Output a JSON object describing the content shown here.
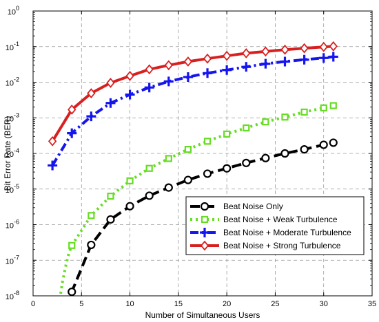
{
  "chart_data": {
    "type": "line",
    "xlabel": "Number of Simultaneous Users",
    "ylabel": "Bit Error Rate (BER)",
    "xlim": [
      0,
      35
    ],
    "ylim_exp": [
      -8,
      0
    ],
    "y_scale": "log",
    "grid": true,
    "legend_position": "bottom-right",
    "x_ticks": [
      "0",
      "5",
      "10",
      "15",
      "20",
      "25",
      "30",
      "35"
    ],
    "y_ticks": [
      {
        "base": "10",
        "exp": "0"
      },
      {
        "base": "10",
        "exp": "-1"
      },
      {
        "base": "10",
        "exp": "-2"
      },
      {
        "base": "10",
        "exp": "-3"
      },
      {
        "base": "10",
        "exp": "-4"
      },
      {
        "base": "10",
        "exp": "-5"
      },
      {
        "base": "10",
        "exp": "-6"
      },
      {
        "base": "10",
        "exp": "-7"
      },
      {
        "base": "10",
        "exp": "-8"
      }
    ],
    "series": [
      {
        "name": "Beat Noise Only",
        "color": "#000000",
        "marker": "circle",
        "dash": "long",
        "x": [
          4,
          6,
          8,
          10,
          12,
          14,
          16,
          18,
          20,
          22,
          24,
          26,
          28,
          30,
          31
        ],
        "y": [
          1.3e-08,
          2.7e-07,
          1.4e-06,
          3.3e-06,
          6.5e-06,
          1.1e-05,
          1.8e-05,
          2.7e-05,
          3.8e-05,
          5.4e-05,
          7.4e-05,
          0.0001,
          0.00013,
          0.000175,
          0.0002
        ],
        "curve_x": [
          3.2,
          3.5,
          3.8
        ],
        "curve_y": [
          2e-09,
          4e-09,
          8e-09
        ]
      },
      {
        "name": "Beat Noise + Weak Turbulence",
        "color": "#66dd22",
        "marker": "square",
        "dash": "dot",
        "x": [
          4,
          6,
          8,
          10,
          12,
          14,
          16,
          18,
          20,
          22,
          24,
          26,
          28,
          30,
          31
        ],
        "y": [
          2.6e-07,
          1.8e-06,
          6.3e-06,
          1.7e-05,
          3.8e-05,
          7.2e-05,
          0.00013,
          0.00022,
          0.00035,
          0.00052,
          0.00077,
          0.00105,
          0.00145,
          0.0019,
          0.0022
        ],
        "curve_x": [
          2.6,
          3.0,
          3.4,
          3.7
        ],
        "curve_y": [
          4e-09,
          2.2e-08,
          7.5e-08,
          1.6e-07
        ]
      },
      {
        "name": "Beat Noise + Moderate Turbulence",
        "color": "#1515ee",
        "marker": "plus",
        "dash": "dashdot",
        "x": [
          2,
          4,
          6,
          8,
          10,
          12,
          14,
          16,
          18,
          20,
          22,
          24,
          26,
          28,
          30,
          31
        ],
        "y": [
          4.6e-05,
          0.00037,
          0.0011,
          0.0026,
          0.0045,
          0.0071,
          0.0105,
          0.014,
          0.018,
          0.022,
          0.027,
          0.033,
          0.038,
          0.043,
          0.048,
          0.052
        ]
      },
      {
        "name": "Beat Noise + Strong Turbulence",
        "color": "#d82020",
        "marker": "diamond",
        "dash": "solid",
        "x": [
          2,
          4,
          6,
          8,
          10,
          12,
          14,
          16,
          18,
          20,
          22,
          24,
          26,
          28,
          30,
          31
        ],
        "y": [
          0.00022,
          0.0017,
          0.0049,
          0.0096,
          0.015,
          0.023,
          0.03,
          0.038,
          0.046,
          0.055,
          0.065,
          0.073,
          0.082,
          0.09,
          0.098,
          0.102
        ]
      }
    ]
  }
}
